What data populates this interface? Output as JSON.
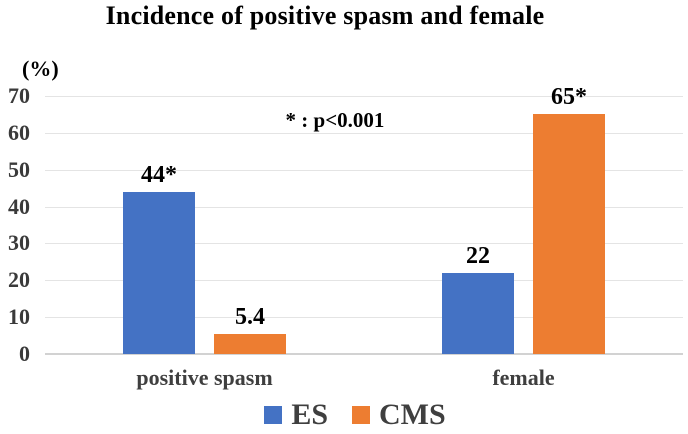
{
  "chart_data": {
    "type": "bar",
    "title": "Incidence of positive spasm and female",
    "y_unit_label": "(%)",
    "annotation": "* : p<0.001",
    "categories": [
      "positive spasm",
      "female"
    ],
    "series": [
      {
        "name": "ES",
        "color": "#4472C4",
        "values": [
          44,
          22
        ],
        "data_labels": [
          "44*",
          "22"
        ]
      },
      {
        "name": "CMS",
        "color": "#ED7D31",
        "values": [
          5.4,
          65
        ],
        "data_labels": [
          "5.4",
          "65*"
        ]
      }
    ],
    "ylim": [
      0,
      70
    ],
    "yticks": [
      0,
      10,
      20,
      30,
      40,
      50,
      60,
      70
    ],
    "grid": "horizontal",
    "legend_position": "bottom",
    "grid_color": "#E4E4E4",
    "axis_line_color": "#D2D2D2",
    "tick_label_color": "#3A3A3A",
    "category_label_color": "#3F3F3F",
    "legend_label_color": "#3F3F3F"
  }
}
